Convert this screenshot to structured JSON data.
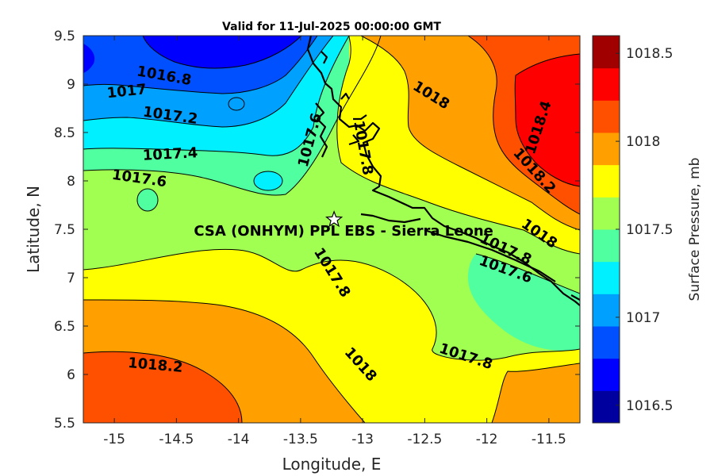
{
  "title": "Valid for 11-Jul-2025 00:00:00 GMT",
  "x_axis": {
    "label": "Longitude, E",
    "range": [
      -15.25,
      -11.25
    ],
    "ticks": [
      "-15",
      "-14.5",
      "-14",
      "-13.5",
      "-13",
      "-12.5",
      "-12",
      "-11.5"
    ]
  },
  "y_axis": {
    "label": "Latitude, N",
    "range": [
      5.5,
      9.5
    ],
    "ticks": [
      "5.5",
      "6",
      "6.5",
      "7",
      "7.5",
      "8",
      "8.5",
      "9",
      "9.5"
    ]
  },
  "colorbar": {
    "label": "Surface Pressure, mb",
    "range": [
      1016.4,
      1018.6
    ],
    "step": 0.2,
    "ticks": [
      "1016.5",
      "1017",
      "1017.5",
      "1018",
      "1018.5"
    ],
    "colors": [
      "#00009f",
      "#0000ff",
      "#0050ff",
      "#00a0ff",
      "#00f0ff",
      "#50ffa0",
      "#a0ff50",
      "#ffff00",
      "#ffa000",
      "#ff5000",
      "#ff0000",
      "#a00000"
    ]
  },
  "site": {
    "label": "CSA (ONHYM) PPL EBS  - Sierra Leone",
    "lon": -13.23,
    "lat": 7.6,
    "marker": "star-icon"
  },
  "contour_labels": [
    {
      "text": "1016.8",
      "lon": -14.6,
      "lat": 9.08,
      "angle": 10
    },
    {
      "text": "1017",
      "lon": -14.9,
      "lat": 8.92,
      "angle": -6
    },
    {
      "text": "1017.2",
      "lon": -14.55,
      "lat": 8.67,
      "angle": 8
    },
    {
      "text": "1017.4",
      "lon": -14.55,
      "lat": 8.27,
      "angle": -3
    },
    {
      "text": "1017.6",
      "lon": -14.8,
      "lat": 8.02,
      "angle": 8
    },
    {
      "text": "1017.6",
      "lon": -13.42,
      "lat": 8.42,
      "angle": -75
    },
    {
      "text": "1017.8",
      "lon": -13.0,
      "lat": 8.34,
      "angle": 80
    },
    {
      "text": "1018",
      "lon": -12.45,
      "lat": 8.88,
      "angle": 32
    },
    {
      "text": "1018.4",
      "lon": -11.58,
      "lat": 8.55,
      "angle": -72
    },
    {
      "text": "1018.2",
      "lon": -11.62,
      "lat": 8.1,
      "angle": 48
    },
    {
      "text": "1018",
      "lon": -11.58,
      "lat": 7.45,
      "angle": 35
    },
    {
      "text": "1017.8",
      "lon": -11.85,
      "lat": 7.29,
      "angle": 25
    },
    {
      "text": "1017.6",
      "lon": -11.85,
      "lat": 7.08,
      "angle": 20
    },
    {
      "text": "1017.8",
      "lon": -13.25,
      "lat": 7.05,
      "angle": 58
    },
    {
      "text": "1018",
      "lon": -13.02,
      "lat": 6.1,
      "angle": 48
    },
    {
      "text": "1017.8",
      "lon": -12.17,
      "lat": 6.18,
      "angle": 18
    },
    {
      "text": "1018.2",
      "lon": -14.67,
      "lat": 6.09,
      "angle": 5
    }
  ]
}
